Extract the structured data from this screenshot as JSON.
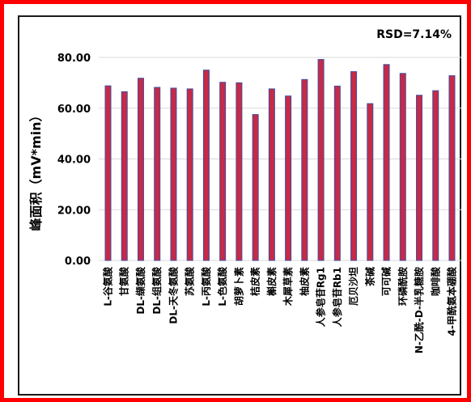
{
  "chart_data": {
    "type": "bar",
    "title": "",
    "annotation": "RSD=7.14%",
    "ylabel": "峰面积（mV*min）",
    "xlabel": "",
    "ylim": [
      0,
      80
    ],
    "yticks": [
      "0.00",
      "20.00",
      "40.00",
      "60.00",
      "80.00"
    ],
    "grid": true,
    "legend": "none",
    "bar_color": "#c62a47",
    "bar_edge_color": "#3f4fa0",
    "categories": [
      "L-谷氨酸",
      "甘氨酸",
      "DL-缬氨酸",
      "DL-组氨酸",
      "DL-天冬氨酸",
      "苏氨酸",
      "L-丙氨酸",
      "L-色氨酸",
      "胡萝卜素",
      "桔皮素",
      "槲皮素",
      "木犀草素",
      "柚皮素",
      "人参皂苷Rg1",
      "人参皂苷Rb1",
      "厄贝沙坦",
      "茶碱",
      "可可碱",
      "环磷酰胺",
      "N-乙酰-D-半乳糖胺",
      "咖啡酸",
      "4-甲酰氨本硼酸"
    ],
    "values": [
      68.8,
      66.5,
      71.8,
      68.2,
      67.9,
      67.6,
      75.0,
      70.2,
      70.0,
      57.5,
      67.6,
      64.8,
      71.3,
      79.2,
      68.7,
      74.4,
      61.8,
      77.2,
      73.7,
      65.1,
      66.9,
      72.8
    ]
  }
}
